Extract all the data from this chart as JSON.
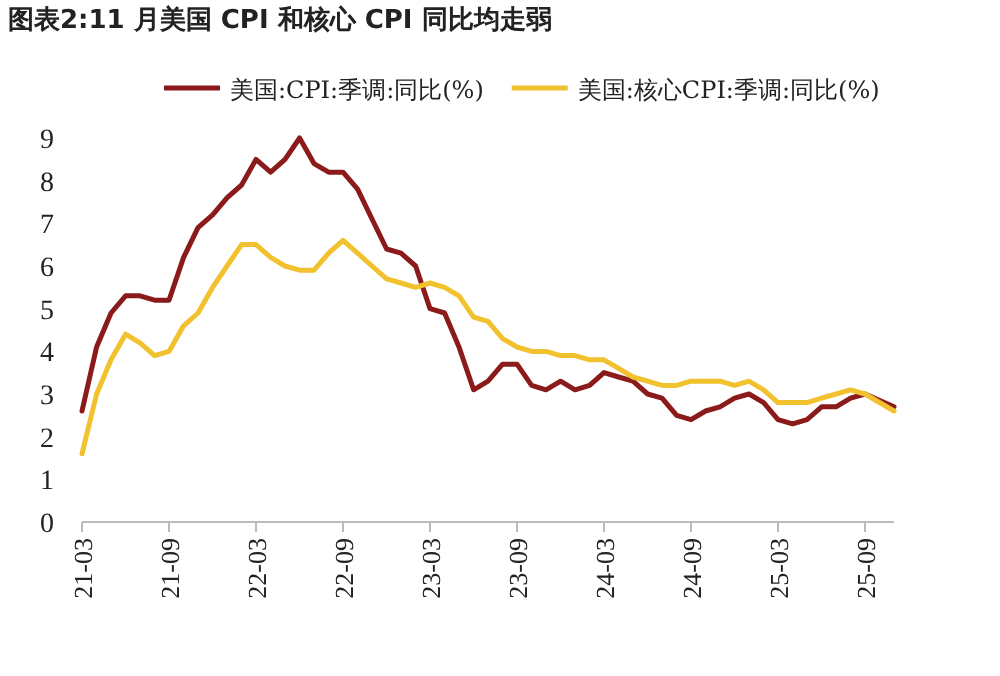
{
  "chart_data": {
    "type": "line",
    "title": "图表2:11 月美国 CPI 和核心 CPI 同比均走弱",
    "categories": [
      "21-03",
      null,
      null,
      null,
      null,
      null,
      "21-09",
      null,
      null,
      null,
      null,
      null,
      "22-03",
      null,
      null,
      null,
      null,
      null,
      "22-09",
      null,
      null,
      null,
      null,
      null,
      "23-03",
      null,
      null,
      null,
      null,
      null,
      "23-09",
      null,
      null,
      null,
      null,
      null,
      "24-03",
      null,
      null,
      null,
      null,
      null,
      "24-09",
      null,
      null,
      null,
      null,
      null,
      "25-03",
      null,
      null,
      null,
      null,
      null,
      "25-09",
      null,
      null
    ],
    "series": [
      {
        "name": "美国:CPI:季调:同比(%)",
        "color": "#8b1a1a",
        "values": [
          2.6,
          4.1,
          4.9,
          5.3,
          5.3,
          5.2,
          5.2,
          6.2,
          6.9,
          7.2,
          7.6,
          7.9,
          8.5,
          8.2,
          8.5,
          9.0,
          8.4,
          8.2,
          8.2,
          7.8,
          7.1,
          6.4,
          6.3,
          6.0,
          5.0,
          4.9,
          4.1,
          3.1,
          3.3,
          3.7,
          3.7,
          3.2,
          3.1,
          3.3,
          3.1,
          3.2,
          3.5,
          3.4,
          3.3,
          3.0,
          2.9,
          2.5,
          2.4,
          2.6,
          2.7,
          2.9,
          3.0,
          2.8,
          2.4,
          2.3,
          2.4,
          2.7,
          2.7,
          2.9,
          3.0,
          null,
          2.7
        ]
      },
      {
        "name": "美国:核心CPI:季调:同比(%)",
        "color": "#f2c12e",
        "values": [
          1.6,
          3.0,
          3.8,
          4.4,
          4.2,
          3.9,
          4.0,
          4.6,
          4.9,
          5.5,
          6.0,
          6.5,
          6.5,
          6.2,
          6.0,
          5.9,
          5.9,
          6.3,
          6.6,
          6.3,
          6.0,
          5.7,
          5.6,
          5.5,
          5.6,
          5.5,
          5.3,
          4.8,
          4.7,
          4.3,
          4.1,
          4.0,
          4.0,
          3.9,
          3.9,
          3.8,
          3.8,
          3.6,
          3.4,
          3.3,
          3.2,
          3.2,
          3.3,
          3.3,
          3.3,
          3.2,
          3.3,
          3.1,
          2.8,
          2.8,
          2.8,
          2.9,
          3.0,
          3.1,
          3.0,
          null,
          2.6
        ]
      }
    ],
    "ylim": [
      0,
      9
    ],
    "yticks": [
      0,
      1,
      2,
      3,
      4,
      5,
      6,
      7,
      8,
      9
    ],
    "legend": "top",
    "grid": false,
    "marker": "none",
    "line_style": "solid"
  }
}
